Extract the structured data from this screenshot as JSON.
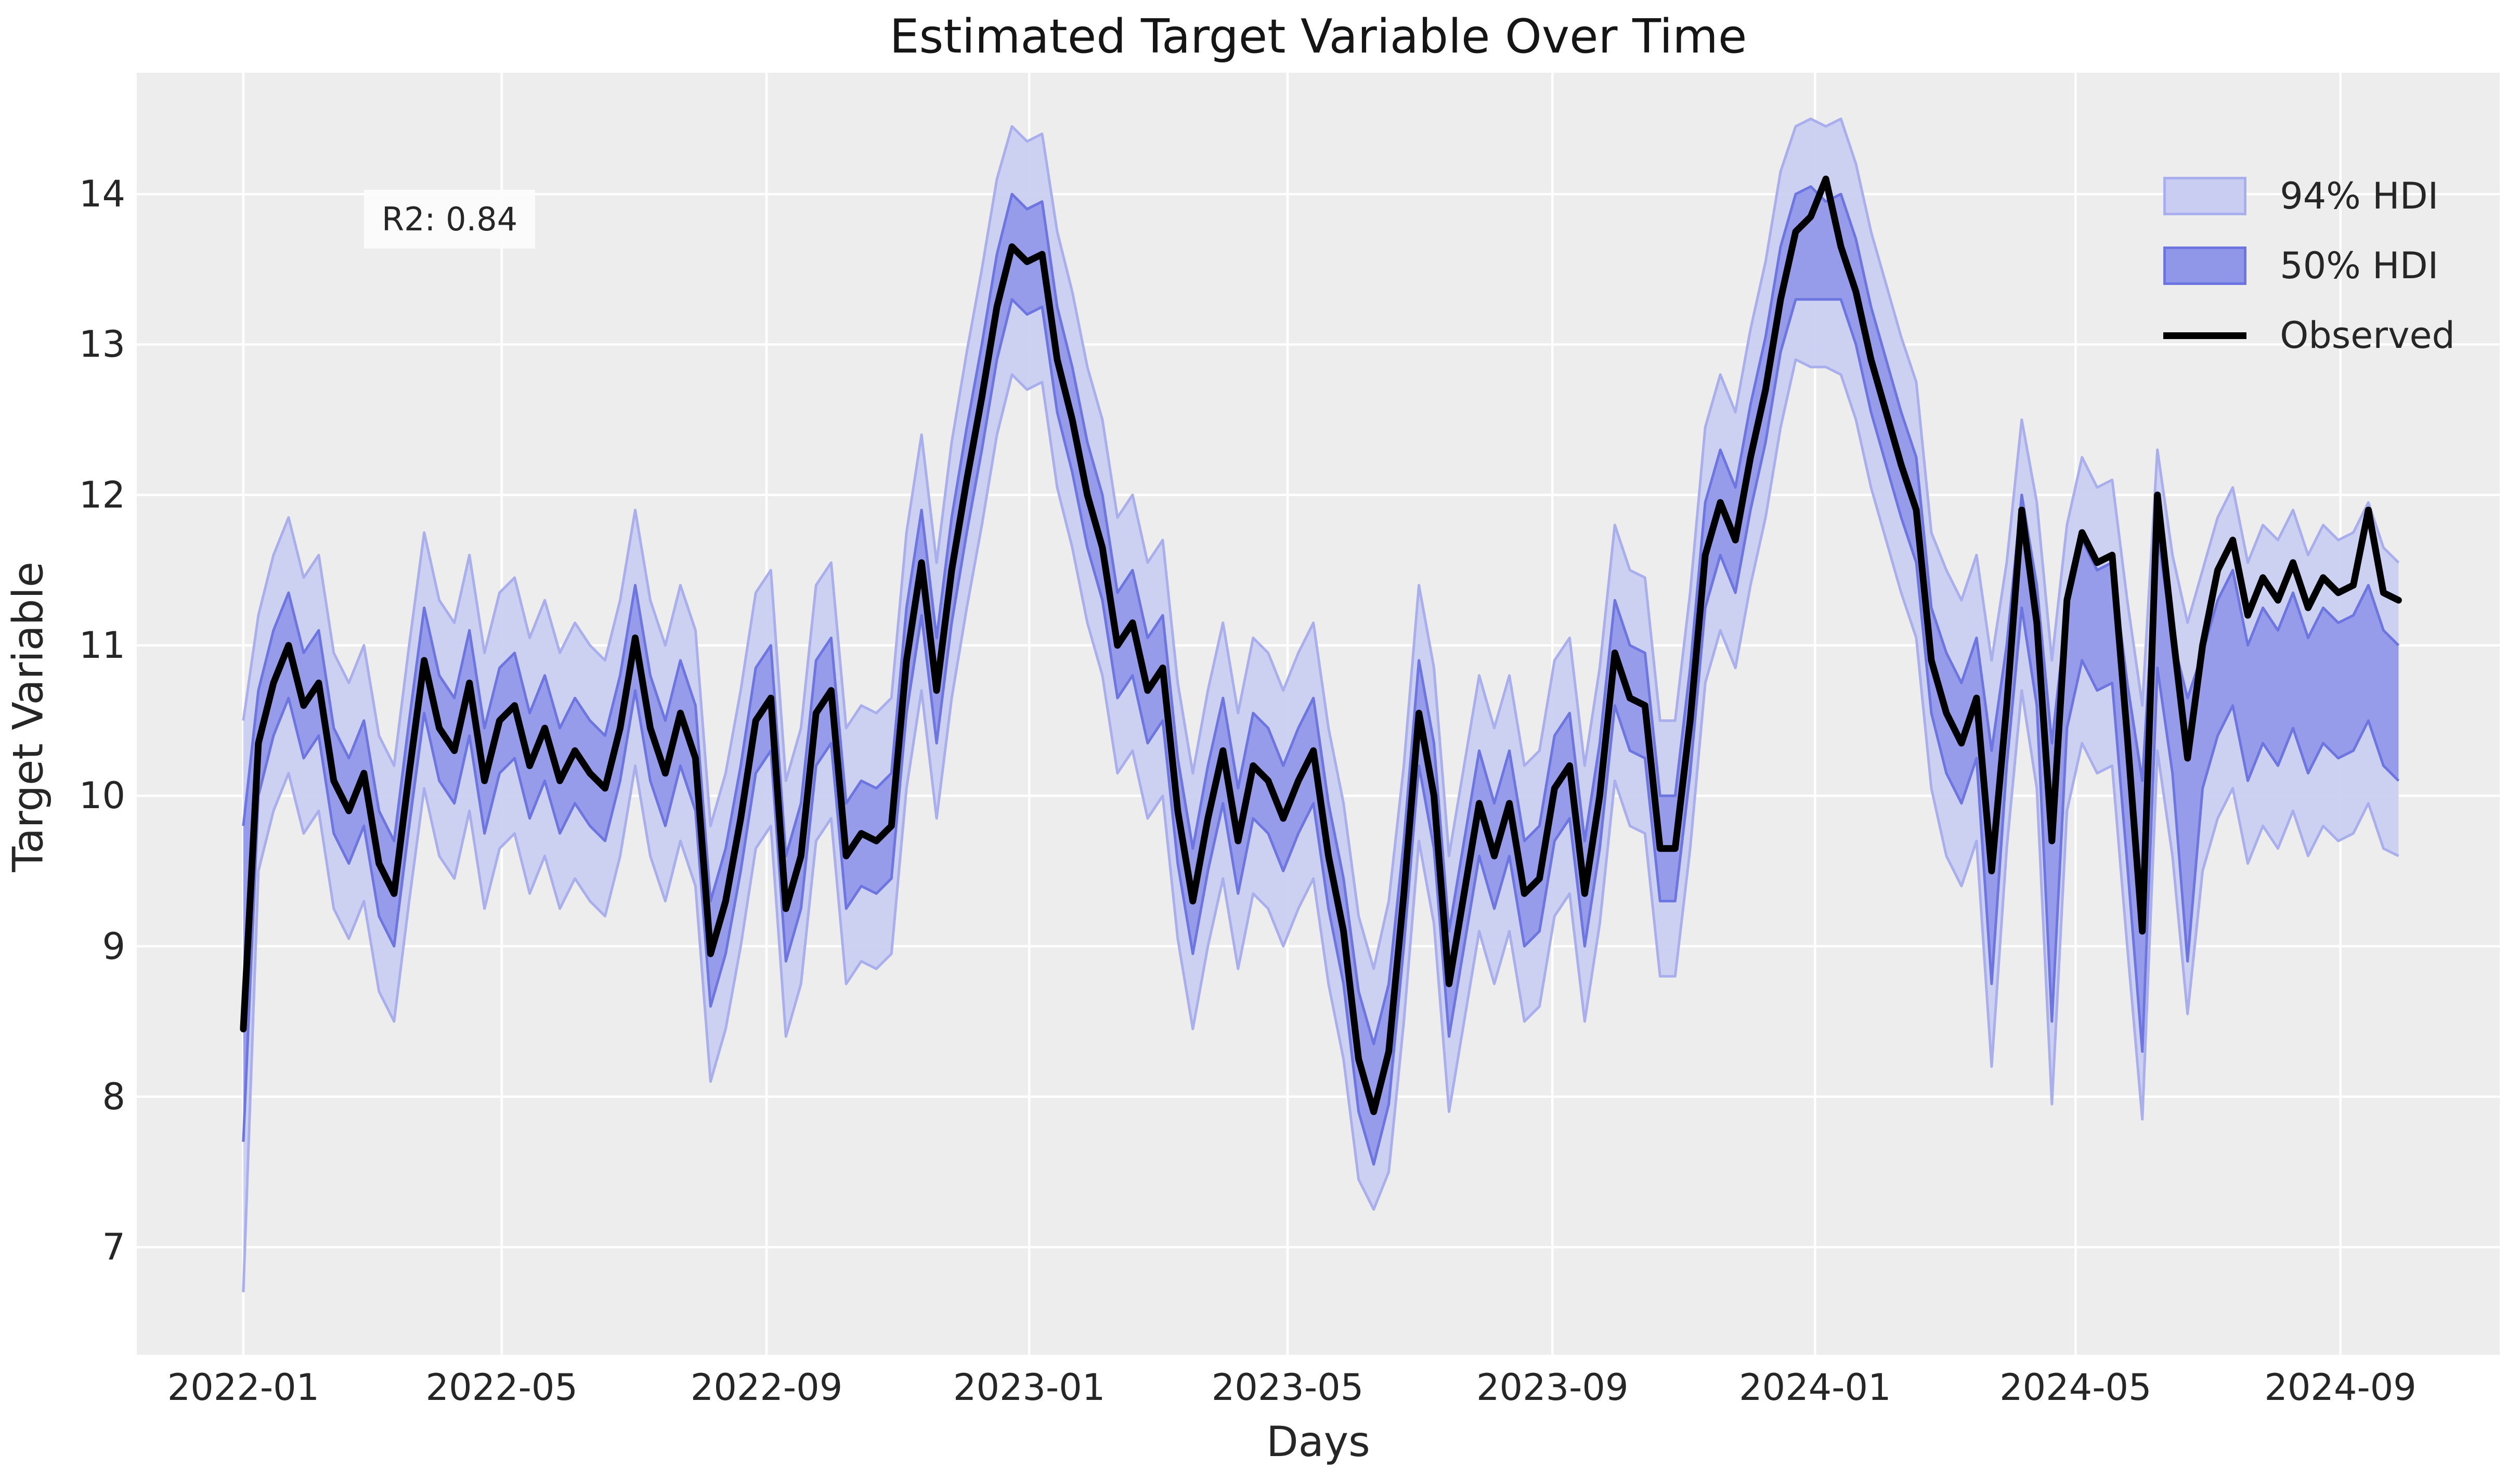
{
  "header": {
    "title": "Estimated Target Variable Over Time"
  },
  "annotation": {
    "r2_label": "R2: 0.84"
  },
  "axes_labels": {
    "xlabel": "Days",
    "ylabel": "Target Variable"
  },
  "colors": {
    "figure_bg": "#ffffff",
    "axes_bg": "#EDEDED",
    "grid": "#ffffff",
    "hdi94_fill": "#c9cdf1",
    "hdi94_edge": "#a9aeec",
    "hdi50_fill": "#9197e8",
    "hdi50_edge": "#6d75e1",
    "observed_line": "#000000",
    "text": "#262626"
  },
  "legend": {
    "position": "upper right",
    "items": [
      {
        "label": "94% HDI",
        "type": "patch",
        "fill": "#c9cdf1",
        "edge": "#a9aeec"
      },
      {
        "label": "50% HDI",
        "type": "patch",
        "fill": "#9197e8",
        "edge": "#6d75e1"
      },
      {
        "label": "Observed",
        "type": "line",
        "color": "#000000"
      }
    ]
  },
  "chart_data": {
    "type": "line",
    "title": "Estimated Target Variable Over Time",
    "xlabel": "Days",
    "ylabel": "Target Variable",
    "grid": true,
    "legend_position": "upper right",
    "annotation": "R2: 0.84",
    "x_start_date": "2022-01-01",
    "x_step_days": 7,
    "x_end_date": "2024-09-28",
    "xlim_days": [
      -49.5,
      1048
    ],
    "ylim": [
      6.285,
      14.806
    ],
    "y_ticks": [
      7,
      8,
      9,
      10,
      11,
      12,
      13,
      14
    ],
    "x_ticks": [
      {
        "label": "2022-01",
        "day": 0
      },
      {
        "label": "2022-05",
        "day": 120
      },
      {
        "label": "2022-09",
        "day": 243
      },
      {
        "label": "2023-01",
        "day": 365
      },
      {
        "label": "2023-05",
        "day": 485
      },
      {
        "label": "2023-09",
        "day": 608
      },
      {
        "label": "2024-01",
        "day": 730
      },
      {
        "label": "2024-05",
        "day": 851
      },
      {
        "label": "2024-09",
        "day": 974
      }
    ],
    "series": [
      {
        "name": "Observed",
        "kind": "line",
        "color": "#000000",
        "values": [
          8.45,
          10.35,
          10.75,
          11.0,
          10.6,
          10.75,
          10.1,
          9.9,
          10.15,
          9.55,
          9.35,
          10.15,
          10.9,
          10.45,
          10.3,
          10.75,
          10.1,
          10.5,
          10.6,
          10.2,
          10.45,
          10.1,
          10.3,
          10.15,
          10.05,
          10.45,
          11.05,
          10.45,
          10.15,
          10.55,
          10.25,
          8.95,
          9.3,
          9.85,
          10.5,
          10.65,
          9.25,
          9.6,
          10.55,
          10.7,
          9.6,
          9.75,
          9.7,
          9.8,
          10.9,
          11.55,
          10.7,
          11.5,
          12.1,
          12.65,
          13.25,
          13.65,
          13.55,
          13.6,
          12.9,
          12.5,
          12.0,
          11.65,
          11.0,
          11.15,
          10.7,
          10.85,
          9.9,
          9.3,
          9.85,
          10.3,
          9.7,
          10.2,
          10.1,
          9.85,
          10.1,
          10.3,
          9.6,
          9.1,
          8.25,
          7.9,
          8.3,
          9.35,
          10.55,
          10.0,
          8.75,
          9.35,
          9.95,
          9.6,
          9.95,
          9.35,
          9.45,
          10.05,
          10.2,
          9.35,
          10.0,
          10.95,
          10.65,
          10.6,
          9.65,
          9.65,
          10.5,
          11.6,
          11.95,
          11.7,
          12.25,
          12.7,
          13.3,
          13.75,
          13.85,
          14.1,
          13.65,
          13.35,
          12.9,
          12.55,
          12.2,
          11.9,
          10.9,
          10.55,
          10.35,
          10.65,
          9.5,
          10.6,
          11.9,
          11.15,
          9.7,
          11.3,
          11.75,
          11.55,
          11.6,
          10.4,
          9.1,
          12.0,
          11.1,
          10.25,
          11.0,
          11.5,
          11.7,
          11.2,
          11.45,
          11.3,
          11.55,
          11.25,
          11.45,
          11.35,
          11.4,
          11.9,
          11.35,
          11.3
        ]
      },
      {
        "name": "50% HDI",
        "kind": "band",
        "fill": "#9197e8",
        "edge": "#6d75e1",
        "lo": [
          7.7,
          10.0,
          10.4,
          10.65,
          10.25,
          10.4,
          9.75,
          9.55,
          9.8,
          9.2,
          9.0,
          9.8,
          10.55,
          10.1,
          9.95,
          10.4,
          9.75,
          10.15,
          10.25,
          9.85,
          10.1,
          9.75,
          9.95,
          9.8,
          9.7,
          10.1,
          10.7,
          10.1,
          9.8,
          10.2,
          9.9,
          8.6,
          8.95,
          9.5,
          10.15,
          10.3,
          8.9,
          9.25,
          10.2,
          10.35,
          9.25,
          9.4,
          9.35,
          9.45,
          10.55,
          11.2,
          10.35,
          11.15,
          11.75,
          12.3,
          12.9,
          13.3,
          13.2,
          13.25,
          12.55,
          12.15,
          11.65,
          11.3,
          10.65,
          10.8,
          10.35,
          10.5,
          9.55,
          8.95,
          9.5,
          9.95,
          9.35,
          9.85,
          9.75,
          9.5,
          9.75,
          9.95,
          9.25,
          8.75,
          7.9,
          7.55,
          7.95,
          9.0,
          10.2,
          9.65,
          8.4,
          9.0,
          9.6,
          9.25,
          9.6,
          9.0,
          9.1,
          9.7,
          9.85,
          9.0,
          9.65,
          10.6,
          10.3,
          10.25,
          9.3,
          9.3,
          10.15,
          11.25,
          11.6,
          11.35,
          11.9,
          12.35,
          12.95,
          13.3,
          13.3,
          13.3,
          13.3,
          13.0,
          12.55,
          12.2,
          11.85,
          11.55,
          10.55,
          10.15,
          9.95,
          10.25,
          8.75,
          10.2,
          11.25,
          10.6,
          8.5,
          10.45,
          10.9,
          10.7,
          10.75,
          9.55,
          8.3,
          10.85,
          10.15,
          8.9,
          10.05,
          10.4,
          10.6,
          10.1,
          10.35,
          10.2,
          10.45,
          10.15,
          10.35,
          10.25,
          10.3,
          10.5,
          10.2,
          10.1
        ],
        "hi": [
          9.8,
          10.7,
          11.1,
          11.35,
          10.95,
          11.1,
          10.45,
          10.25,
          10.5,
          9.9,
          9.7,
          10.5,
          11.25,
          10.8,
          10.65,
          11.1,
          10.45,
          10.85,
          10.95,
          10.55,
          10.8,
          10.45,
          10.65,
          10.5,
          10.4,
          10.8,
          11.4,
          10.8,
          10.5,
          10.9,
          10.6,
          9.3,
          9.65,
          10.2,
          10.85,
          11.0,
          9.6,
          9.95,
          10.9,
          11.05,
          9.95,
          10.1,
          10.05,
          10.15,
          11.25,
          11.9,
          11.05,
          11.85,
          12.45,
          13.0,
          13.6,
          14.0,
          13.9,
          13.95,
          13.25,
          12.85,
          12.35,
          12.0,
          11.35,
          11.5,
          11.05,
          11.2,
          10.25,
          9.65,
          10.2,
          10.65,
          10.05,
          10.55,
          10.45,
          10.2,
          10.45,
          10.65,
          9.95,
          9.45,
          8.7,
          8.35,
          8.75,
          9.7,
          10.9,
          10.35,
          9.1,
          9.7,
          10.3,
          9.95,
          10.3,
          9.7,
          9.8,
          10.4,
          10.55,
          9.7,
          10.35,
          11.3,
          11.0,
          10.95,
          10.0,
          10.0,
          10.85,
          11.95,
          12.3,
          12.05,
          12.6,
          13.05,
          13.65,
          14.0,
          14.05,
          13.95,
          14.0,
          13.7,
          13.25,
          12.9,
          12.55,
          12.25,
          11.25,
          10.95,
          10.75,
          11.05,
          10.3,
          11.0,
          12.0,
          11.4,
          10.35,
          11.25,
          11.7,
          11.5,
          11.55,
          10.75,
          10.1,
          11.75,
          11.05,
          10.65,
          10.95,
          11.3,
          11.5,
          11.0,
          11.25,
          11.1,
          11.35,
          11.05,
          11.25,
          11.15,
          11.2,
          11.4,
          11.1,
          11.0
        ]
      },
      {
        "name": "94% HDI",
        "kind": "band",
        "fill": "#c9cdf1",
        "edge": "#a9aeec",
        "lo": [
          6.7,
          9.5,
          9.9,
          10.15,
          9.75,
          9.9,
          9.25,
          9.05,
          9.3,
          8.7,
          8.5,
          9.3,
          10.05,
          9.6,
          9.45,
          9.9,
          9.25,
          9.65,
          9.75,
          9.35,
          9.6,
          9.25,
          9.45,
          9.3,
          9.2,
          9.6,
          10.2,
          9.6,
          9.3,
          9.7,
          9.4,
          8.1,
          8.45,
          9.0,
          9.65,
          9.8,
          8.4,
          8.75,
          9.7,
          9.85,
          8.75,
          8.9,
          8.85,
          8.95,
          10.05,
          10.7,
          9.85,
          10.65,
          11.25,
          11.8,
          12.4,
          12.8,
          12.7,
          12.75,
          12.05,
          11.65,
          11.15,
          10.8,
          10.15,
          10.3,
          9.85,
          10.0,
          9.05,
          8.45,
          9.0,
          9.45,
          8.85,
          9.35,
          9.25,
          9.0,
          9.25,
          9.45,
          8.75,
          8.25,
          7.45,
          7.25,
          7.5,
          8.5,
          9.7,
          9.15,
          7.9,
          8.5,
          9.1,
          8.75,
          9.1,
          8.5,
          8.6,
          9.2,
          9.35,
          8.5,
          9.15,
          10.1,
          9.8,
          9.75,
          8.8,
          8.8,
          9.65,
          10.75,
          11.1,
          10.85,
          11.4,
          11.85,
          12.45,
          12.9,
          12.85,
          12.85,
          12.8,
          12.5,
          12.05,
          11.7,
          11.35,
          11.05,
          10.05,
          9.6,
          9.4,
          9.7,
          8.2,
          9.65,
          10.7,
          10.05,
          7.95,
          9.9,
          10.35,
          10.15,
          10.2,
          9.0,
          7.85,
          10.3,
          9.6,
          8.55,
          9.5,
          9.85,
          10.05,
          9.55,
          9.8,
          9.65,
          9.9,
          9.6,
          9.8,
          9.7,
          9.75,
          9.95,
          9.65,
          9.6
        ],
        "hi": [
          10.5,
          11.2,
          11.6,
          11.85,
          11.45,
          11.6,
          10.95,
          10.75,
          11.0,
          10.4,
          10.2,
          11.0,
          11.75,
          11.3,
          11.15,
          11.6,
          10.95,
          11.35,
          11.45,
          11.05,
          11.3,
          10.95,
          11.15,
          11.0,
          10.9,
          11.3,
          11.9,
          11.3,
          11.0,
          11.4,
          11.1,
          9.8,
          10.15,
          10.7,
          11.35,
          11.5,
          10.1,
          10.45,
          11.4,
          11.55,
          10.45,
          10.6,
          10.55,
          10.65,
          11.75,
          12.4,
          11.55,
          12.35,
          12.95,
          13.5,
          14.1,
          14.45,
          14.35,
          14.4,
          13.75,
          13.35,
          12.85,
          12.5,
          11.85,
          12.0,
          11.55,
          11.7,
          10.75,
          10.15,
          10.7,
          11.15,
          10.55,
          11.05,
          10.95,
          10.7,
          10.95,
          11.15,
          10.45,
          9.95,
          9.2,
          8.85,
          9.3,
          10.2,
          11.4,
          10.85,
          9.6,
          10.2,
          10.8,
          10.45,
          10.8,
          10.2,
          10.3,
          10.9,
          11.05,
          10.2,
          10.85,
          11.8,
          11.5,
          11.45,
          10.5,
          10.5,
          11.35,
          12.45,
          12.8,
          12.55,
          13.1,
          13.55,
          14.15,
          14.45,
          14.5,
          14.45,
          14.5,
          14.2,
          13.75,
          13.4,
          13.05,
          12.75,
          11.75,
          11.5,
          11.3,
          11.6,
          10.9,
          11.55,
          12.5,
          11.95,
          10.9,
          11.8,
          12.25,
          12.05,
          12.1,
          11.3,
          10.6,
          12.3,
          11.6,
          11.15,
          11.5,
          11.85,
          12.05,
          11.55,
          11.8,
          11.7,
          11.9,
          11.6,
          11.8,
          11.7,
          11.75,
          11.95,
          11.65,
          11.55
        ]
      }
    ]
  }
}
